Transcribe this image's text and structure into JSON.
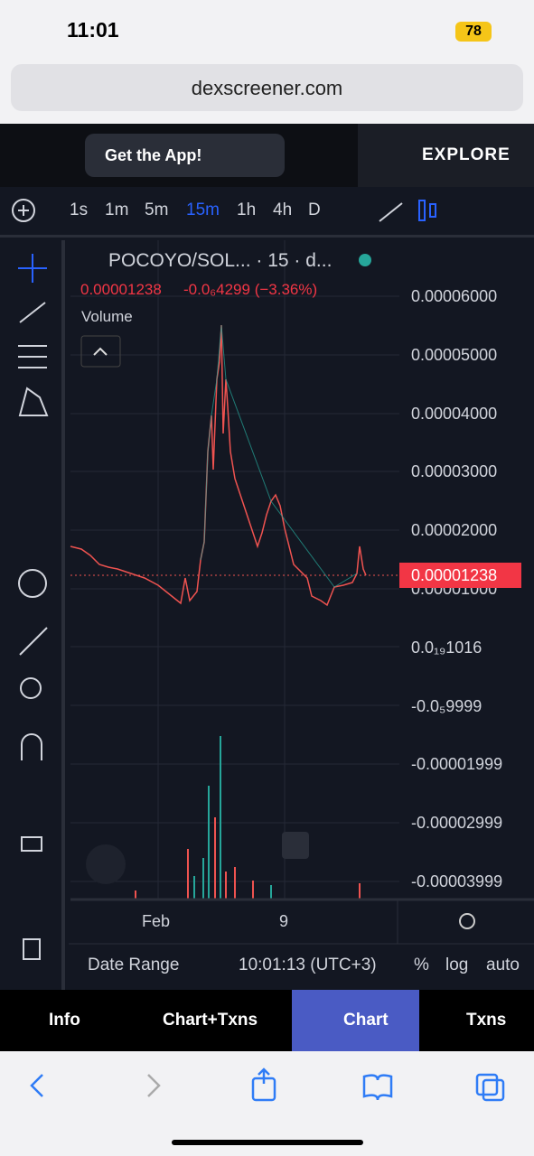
{
  "status_bar": {
    "time": "11:01",
    "battery": "78"
  },
  "browser": {
    "url": "dexscreener.com"
  },
  "header": {
    "get_app": "Get the App!",
    "explore": "EXPLORE"
  },
  "intervals": [
    "1s",
    "1m",
    "5m",
    "15m",
    "1h",
    "4h",
    "D"
  ],
  "chart": {
    "pair": "POCOYO/SOL... · 15 · d...",
    "price": "0.00001238",
    "change": "-0.0₆4299 (−3.36%)",
    "volume_label": "Volume",
    "price_axis": [
      "0.00006000",
      "0.00005000",
      "0.00004000",
      "0.00003000",
      "0.00002000",
      "0.00001000",
      "0.0₁₉1016",
      "-0.0₅9999",
      "-0.00001999",
      "-0.00002999",
      "-0.00003999"
    ],
    "current_price_tag": "0.00001238",
    "time_axis": [
      "Feb",
      "9"
    ]
  },
  "chart_footer": {
    "date_range": "Date Range",
    "time": "10:01:13 (UTC+3)",
    "percent": "%",
    "log": "log",
    "auto": "auto"
  },
  "tabs": [
    "Info",
    "Chart+Txns",
    "Chart",
    "Txns"
  ]
}
